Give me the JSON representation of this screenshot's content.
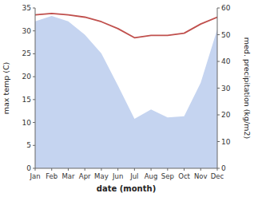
{
  "chart_data": {
    "type": "line",
    "categories": [
      "Jan",
      "Feb",
      "Mar",
      "Apr",
      "May",
      "Jun",
      "Jul",
      "Aug",
      "Sep",
      "Oct",
      "Nov",
      "Dec"
    ],
    "series": [
      {
        "type": "area",
        "axis": "y2",
        "color": "#c5d4f0",
        "values": [
          55.0,
          57.0,
          55.0,
          50.0,
          43.0,
          31.0,
          18.5,
          22.0,
          19.0,
          19.5,
          32.0,
          52.0
        ]
      },
      {
        "type": "line",
        "color": "#c0504d",
        "values": [
          33.5,
          33.8,
          33.5,
          33.0,
          32.0,
          30.5,
          28.5,
          29.0,
          29.0,
          29.5,
          31.5,
          33.0
        ]
      }
    ],
    "xlabel": "date (month)",
    "ylabel": "max temp (C)",
    "y2label": "med. precipitation (kg/m2)",
    "ylim": [
      0,
      35
    ],
    "yticks": [
      0,
      5,
      10,
      15,
      20,
      25,
      30,
      35
    ],
    "y2lim": [
      0,
      60
    ],
    "y2ticks": [
      0,
      10,
      20,
      30,
      40,
      50,
      60
    ],
    "grid": false
  }
}
